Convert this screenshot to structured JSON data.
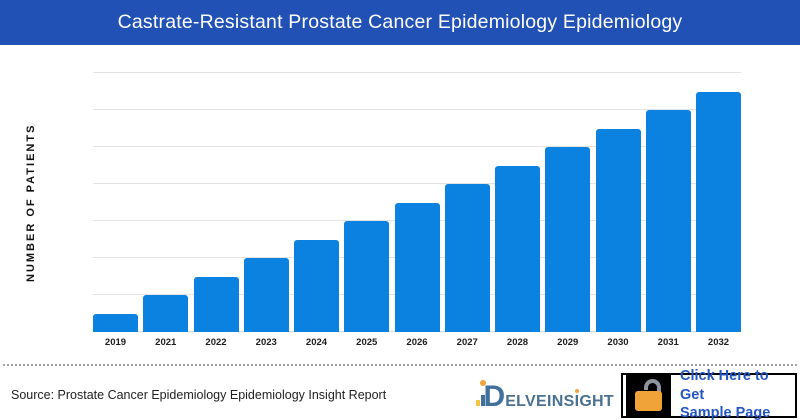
{
  "header": {
    "title": "Castrate-Resistant Prostate Cancer Epidemiology Epidemiology"
  },
  "colors": {
    "header_bg": "#2151b5",
    "bar": "#0b82e0",
    "gridline": "#e3e3e3",
    "cta_text_blue": "#2456c2",
    "lock_orange": "#f0a338",
    "lock_shackle_gray": "#8d959e",
    "logo_blue": "#41709b",
    "logo_orange": "#f2a33c"
  },
  "chart_data": {
    "type": "bar",
    "title": "Castrate-Resistant Prostate Cancer Epidemiology Epidemiology",
    "categories": [
      "2019",
      "2021",
      "2022",
      "2023",
      "2024",
      "2025",
      "2026",
      "2027",
      "2028",
      "2029",
      "2030",
      "2031",
      "2032"
    ],
    "values": [
      0.5,
      1.0,
      1.5,
      2.0,
      2.5,
      3.0,
      3.5,
      4.0,
      4.5,
      5.0,
      5.5,
      6.0,
      6.5
    ],
    "xlabel": "",
    "ylabel": "NUMBER OF PATIENTS",
    "ylim": [
      0,
      7
    ],
    "gridline_step": 1,
    "grid": true,
    "legend": false,
    "y_tick_labels_shown": false
  },
  "footer": {
    "source_label": "Source: Prostate Cancer Epidemiology Epidemiology Insight Report",
    "logo": {
      "letter_d": "D",
      "text_before_dotted_i": "ELVEINS",
      "dotted_i": "I",
      "text_after_dotted_i": "GHT"
    },
    "cta": {
      "line1": "Click Here to Get",
      "line2": "Sample Page"
    }
  },
  "icons": {
    "cta_lock": "unlocked-padlock-icon",
    "logo_mark": "delveinsight-d-mark"
  }
}
